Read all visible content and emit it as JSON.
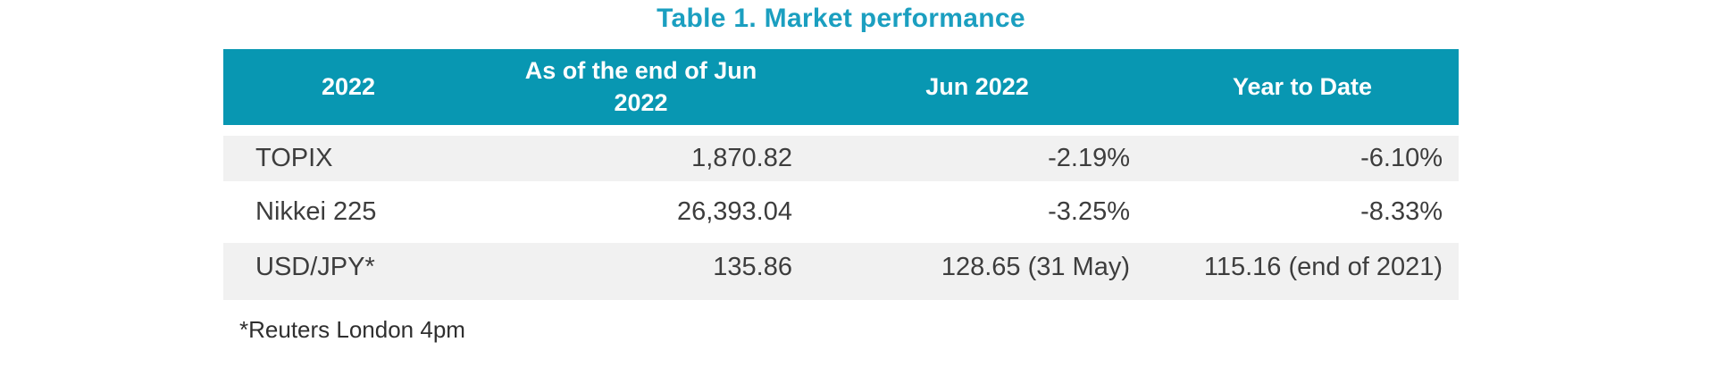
{
  "colors": {
    "header_bg": "#0897B2",
    "title_text": "#1B9FC0",
    "alt_row_bg": "#F1F1F1",
    "body_text": "#3D3D3D",
    "header_text": "#FFFFFF"
  },
  "chart_data": {
    "type": "table",
    "title": "Table 1. Market performance",
    "columns": [
      "2022",
      "As of the end of Jun 2022",
      "Jun 2022",
      "Year to Date"
    ],
    "rows": [
      [
        "TOPIX",
        "1,870.82",
        "-2.19%",
        "-6.10%"
      ],
      [
        "Nikkei 225",
        "26,393.04",
        "-3.25%",
        "-8.33%"
      ],
      [
        "USD/JPY*",
        "135.86",
        "128.65 (31 May)",
        "115.16 (end of 2021)"
      ]
    ],
    "footnote": "*Reuters London 4pm",
    "layout": {
      "legend_position": "none",
      "grid": "off",
      "label_column_alignment": "left",
      "value_columns_alignment": "right",
      "header_alignment": "center",
      "row_striping": "gray-white-gray"
    }
  }
}
